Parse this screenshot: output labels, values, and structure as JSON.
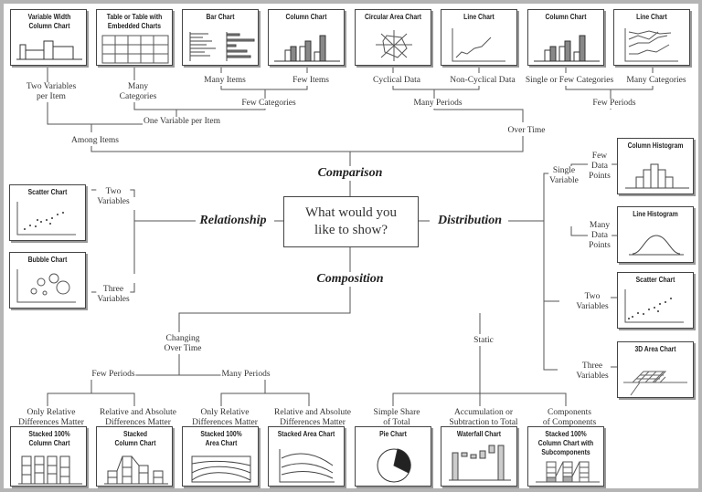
{
  "center": {
    "question": "What would you\nlike to show?",
    "comparison": "Comparison",
    "relationship": "Relationship",
    "distribution": "Distribution",
    "composition": "Composition"
  },
  "comparison": {
    "boxes": [
      "Variable Width Column Chart",
      "Table or Table with Embedded Charts",
      "Bar Chart",
      "Column Chart",
      "Circular Area Chart",
      "Line Chart",
      "Column Chart",
      "Line Chart"
    ],
    "labels": {
      "two_vars": "Two Variables\nper Item",
      "many_categories": "Many\nCategories",
      "many_items": "Many Items",
      "few_items": "Few Items",
      "few_categories": "Few Categories",
      "one_var": "One Variable per Item",
      "among_items": "Among Items",
      "cyclical": "Cyclical Data",
      "non_cyclical": "Non-Cyclical Data",
      "single_few": "Single or Few Categories",
      "many_cat": "Many Categories",
      "many_periods": "Many Periods",
      "few_periods": "Few Periods",
      "over_time": "Over Time"
    }
  },
  "relationship": {
    "boxes": [
      "Scatter Chart",
      "Bubble Chart"
    ],
    "labels": {
      "two": "Two\nVariables",
      "three": "Three\nVariables"
    }
  },
  "distribution": {
    "boxes": [
      "Column Histogram",
      "Line Histogram",
      "Scatter Chart",
      "3D Area Chart"
    ],
    "labels": {
      "single": "Single\nVariable",
      "few_points": "Few\nData\nPoints",
      "many_points": "Many\nData\nPoints",
      "two": "Two\nVariables",
      "three": "Three\nVariables"
    }
  },
  "composition": {
    "boxes": [
      "Stacked 100% Column Chart",
      "Stacked Column Chart",
      "Stacked 100% Area Chart",
      "Stacked Area Chart",
      "Pie Chart",
      "Waterfall Chart",
      "Stacked 100% Column Chart with Subcomponents"
    ],
    "labels": {
      "changing": "Changing\nOver Time",
      "static": "Static",
      "few_periods": "Few Periods",
      "many_periods": "Many Periods",
      "rel1": "Only Relative\nDifferences Matter",
      "relabs1": "Relative and Absolute\nDifferences Matter",
      "rel2": "Only Relative\nDifferences Matter",
      "relabs2": "Relative and Absolute\nDifferences Matter",
      "share": "Simple Share\nof Total",
      "accum": "Accumulation or\nSubtraction to Total",
      "components": "Components\nof Components"
    }
  }
}
